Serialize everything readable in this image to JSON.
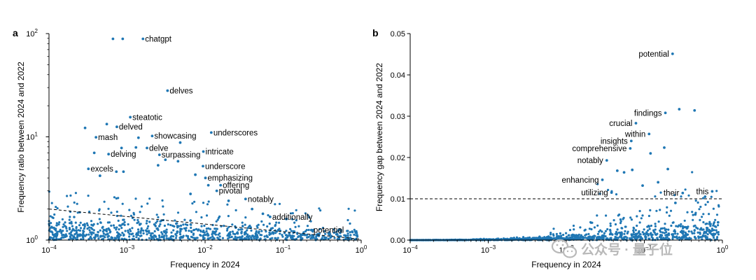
{
  "watermark": {
    "text": "公众号 · 量子位",
    "icon": "wechat-icon",
    "color": "#b9b9b9"
  },
  "colors": {
    "points": "#1f77b4",
    "axis": "#000000",
    "reference_line": "#000000"
  },
  "chart_data": [
    {
      "id": "a",
      "type": "scatter",
      "panel_label": "a",
      "xlabel": "Frequency in 2024",
      "ylabel": "Frequency ratio between 2024 and 2022",
      "xscale": "log",
      "yscale": "log",
      "xlim": [
        0.0001,
        1
      ],
      "ylim": [
        1,
        100
      ],
      "xticks": [
        {
          "value": 0.0001,
          "base": "10",
          "exp": "−4"
        },
        {
          "value": 0.001,
          "base": "10",
          "exp": "−3"
        },
        {
          "value": 0.01,
          "base": "10",
          "exp": "−2"
        },
        {
          "value": 0.1,
          "base": "10",
          "exp": "−1"
        },
        {
          "value": 1,
          "base": "10",
          "exp": "0"
        }
      ],
      "yticks": [
        {
          "value": 1,
          "base": "10",
          "exp": "0"
        },
        {
          "value": 10,
          "base": "10",
          "exp": "1"
        },
        {
          "value": 100,
          "base": "10",
          "exp": "2"
        }
      ],
      "reference_line": {
        "style": "dashed",
        "points": [
          [
            0.0001,
            2.0
          ],
          [
            1,
            1.02
          ]
        ]
      },
      "labeled_points": [
        {
          "label": "chatgpt",
          "x": 0.0016,
          "y": 89
        },
        {
          "label": "delves",
          "x": 0.0033,
          "y": 28
        },
        {
          "label": "steatotic",
          "x": 0.0011,
          "y": 15.5
        },
        {
          "label": "delved",
          "x": 0.00074,
          "y": 12.5
        },
        {
          "label": "mash",
          "x": 0.0004,
          "y": 9.9
        },
        {
          "label": "showcasing",
          "x": 0.0021,
          "y": 10.2
        },
        {
          "label": "underscores",
          "x": 0.012,
          "y": 11
        },
        {
          "label": "delve",
          "x": 0.0018,
          "y": 7.8
        },
        {
          "label": "delving",
          "x": 0.00058,
          "y": 6.8
        },
        {
          "label": "surpassing",
          "x": 0.0026,
          "y": 6.7
        },
        {
          "label": "intricate",
          "x": 0.0095,
          "y": 7.2
        },
        {
          "label": "underscore",
          "x": 0.0094,
          "y": 5.2
        },
        {
          "label": "excels",
          "x": 0.00032,
          "y": 4.9
        },
        {
          "label": "emphasizing",
          "x": 0.0101,
          "y": 4.0
        },
        {
          "label": "offering",
          "x": 0.0158,
          "y": 3.4
        },
        {
          "label": "pivotal",
          "x": 0.0141,
          "y": 3.0
        },
        {
          "label": "notably",
          "x": 0.033,
          "y": 2.5
        },
        {
          "label": "additionally",
          "x": 0.068,
          "y": 1.68
        },
        {
          "label": "potential",
          "x": 0.23,
          "y": 1.25
        }
      ],
      "unlabeled_points": [
        {
          "x": 0.00066,
          "y": 89
        },
        {
          "x": 0.00088,
          "y": 89
        },
        {
          "x": 0.00029,
          "y": 12.2
        },
        {
          "x": 0.00055,
          "y": 13.3
        },
        {
          "x": 0.0013,
          "y": 7.9
        },
        {
          "x": 0.00073,
          "y": 4.6
        },
        {
          "x": 0.0009,
          "y": 4.6
        },
        {
          "x": 0.00045,
          "y": 4.2
        },
        {
          "x": 0.0031,
          "y": 6.0
        },
        {
          "x": 0.0045,
          "y": 5.8
        },
        {
          "x": 0.0075,
          "y": 4.3
        },
        {
          "x": 0.0025,
          "y": 5.3
        },
        {
          "x": 0.00038,
          "y": 7.0
        },
        {
          "x": 0.00085,
          "y": 7.8
        },
        {
          "x": 0.0014,
          "y": 9.8
        },
        {
          "x": 0.0048,
          "y": 8.8
        },
        {
          "x": 0.011,
          "y": 3.4
        },
        {
          "x": 0.0065,
          "y": 2.8
        },
        {
          "x": 0.02,
          "y": 2.4
        },
        {
          "x": 0.055,
          "y": 1.8
        },
        {
          "x": 0.04,
          "y": 2.0
        },
        {
          "x": 0.11,
          "y": 1.6
        }
      ],
      "cloud": {
        "seed": 7,
        "count": 900,
        "xmin": 0.0001,
        "xmax": 0.9,
        "ymax": 3.0
      }
    },
    {
      "id": "b",
      "type": "scatter",
      "panel_label": "b",
      "xlabel": "Frequency in 2024",
      "ylabel": "Frequency gap between 2024 and 2022",
      "xscale": "log",
      "yscale": "linear",
      "xlim": [
        0.0001,
        1
      ],
      "ylim": [
        0,
        0.05
      ],
      "xticks": [
        {
          "value": 0.0001,
          "base": "10",
          "exp": "−4"
        },
        {
          "value": 0.001,
          "base": "10",
          "exp": "−3"
        },
        {
          "value": 0.01,
          "base": "10",
          "exp": "−2"
        },
        {
          "value": 0.1,
          "base": "10",
          "exp": "−1"
        },
        {
          "value": 1,
          "base": "10",
          "exp": "0"
        }
      ],
      "yticks": [
        {
          "value": 0,
          "text": "0.00"
        },
        {
          "value": 0.01,
          "text": "0.01"
        },
        {
          "value": 0.02,
          "text": "0.02"
        },
        {
          "value": 0.03,
          "text": "0.03"
        },
        {
          "value": 0.04,
          "text": "0.04"
        },
        {
          "value": 0.05,
          "text": "0.05"
        }
      ],
      "reference_line": {
        "style": "dashed",
        "points": [
          [
            0.0001,
            0.01
          ],
          [
            1,
            0.01
          ]
        ]
      },
      "labeled_points": [
        {
          "label": "potential",
          "x": 0.23,
          "y": 0.0451
        },
        {
          "label": "findings",
          "x": 0.186,
          "y": 0.0308
        },
        {
          "label": "crucial",
          "x": 0.078,
          "y": 0.0283
        },
        {
          "label": "within",
          "x": 0.115,
          "y": 0.0257
        },
        {
          "label": "insights",
          "x": 0.068,
          "y": 0.024
        },
        {
          "label": "comprehensive",
          "x": 0.066,
          "y": 0.0222
        },
        {
          "label": "notably",
          "x": 0.033,
          "y": 0.0193
        },
        {
          "label": "enhancing",
          "x": 0.029,
          "y": 0.0146
        },
        {
          "label": "utilizing",
          "x": 0.038,
          "y": 0.0115
        },
        {
          "label": "their",
          "x": 0.31,
          "y": 0.0114
        },
        {
          "label": "this",
          "x": 0.74,
          "y": 0.0118
        }
      ],
      "unlabeled_points": [
        {
          "x": 0.28,
          "y": 0.0317
        },
        {
          "x": 0.44,
          "y": 0.0314
        },
        {
          "x": 0.18,
          "y": 0.0224
        },
        {
          "x": 0.12,
          "y": 0.021
        },
        {
          "x": 0.055,
          "y": 0.0164
        },
        {
          "x": 0.07,
          "y": 0.017
        },
        {
          "x": 0.045,
          "y": 0.0168
        },
        {
          "x": 0.6,
          "y": 0.0105
        },
        {
          "x": 0.45,
          "y": 0.0062
        },
        {
          "x": 0.88,
          "y": 0.0043
        },
        {
          "x": 0.15,
          "y": 0.014
        },
        {
          "x": 0.25,
          "y": 0.009
        },
        {
          "x": 0.095,
          "y": 0.0132
        },
        {
          "x": 0.2,
          "y": 0.0172
        }
      ],
      "cloud": {
        "seed": 11,
        "count": 1000,
        "xmin": 0.0001,
        "xmax": 0.9
      }
    }
  ]
}
